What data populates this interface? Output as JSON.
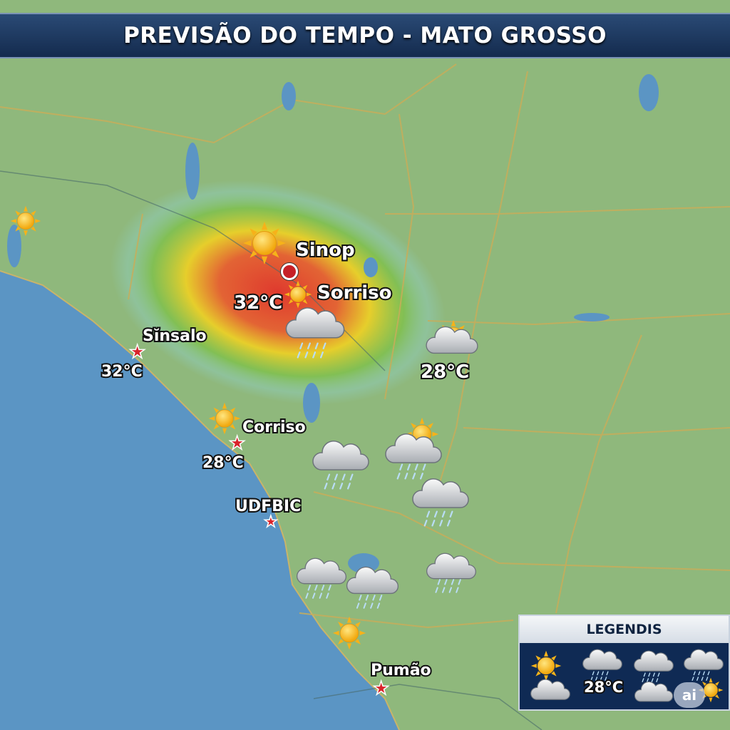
{
  "header": {
    "title": "PREVISÃO DO TEMPO - MATO GROSSO"
  },
  "colors": {
    "land": "#8fb87c",
    "sea": "#5b95c4",
    "heat_hot": "#e3332a",
    "heat_warm": "#f6d21d",
    "heat_mild": "#7cc243",
    "title_bar": "#1c365e",
    "marker": "#d9232a"
  },
  "cities": [
    {
      "name": "Sinop",
      "marker": "circle"
    },
    {
      "name": "Sorriso",
      "marker": "sun-icon",
      "temp": "32°C"
    },
    {
      "name": "Sĭnsalo",
      "marker": "star",
      "temp": "32°C"
    },
    {
      "name": "Corriso",
      "marker": "star",
      "temp": "28°C"
    },
    {
      "name": "UDFBIC",
      "marker": "star"
    },
    {
      "name": "Pumão",
      "marker": "star"
    }
  ],
  "east_reading": {
    "icon": "partly-cloudy-icon",
    "temp": "28°C"
  },
  "legend": {
    "title": "LEGENDIS",
    "items": [
      "sun-icon",
      "rain-cloud-icon",
      "rain-cloud-icon",
      "rain-cloud-icon",
      "cloud-icon",
      "cloud-icon",
      "sun-rain-icon"
    ],
    "temp": "28°C",
    "badge": "ai"
  }
}
